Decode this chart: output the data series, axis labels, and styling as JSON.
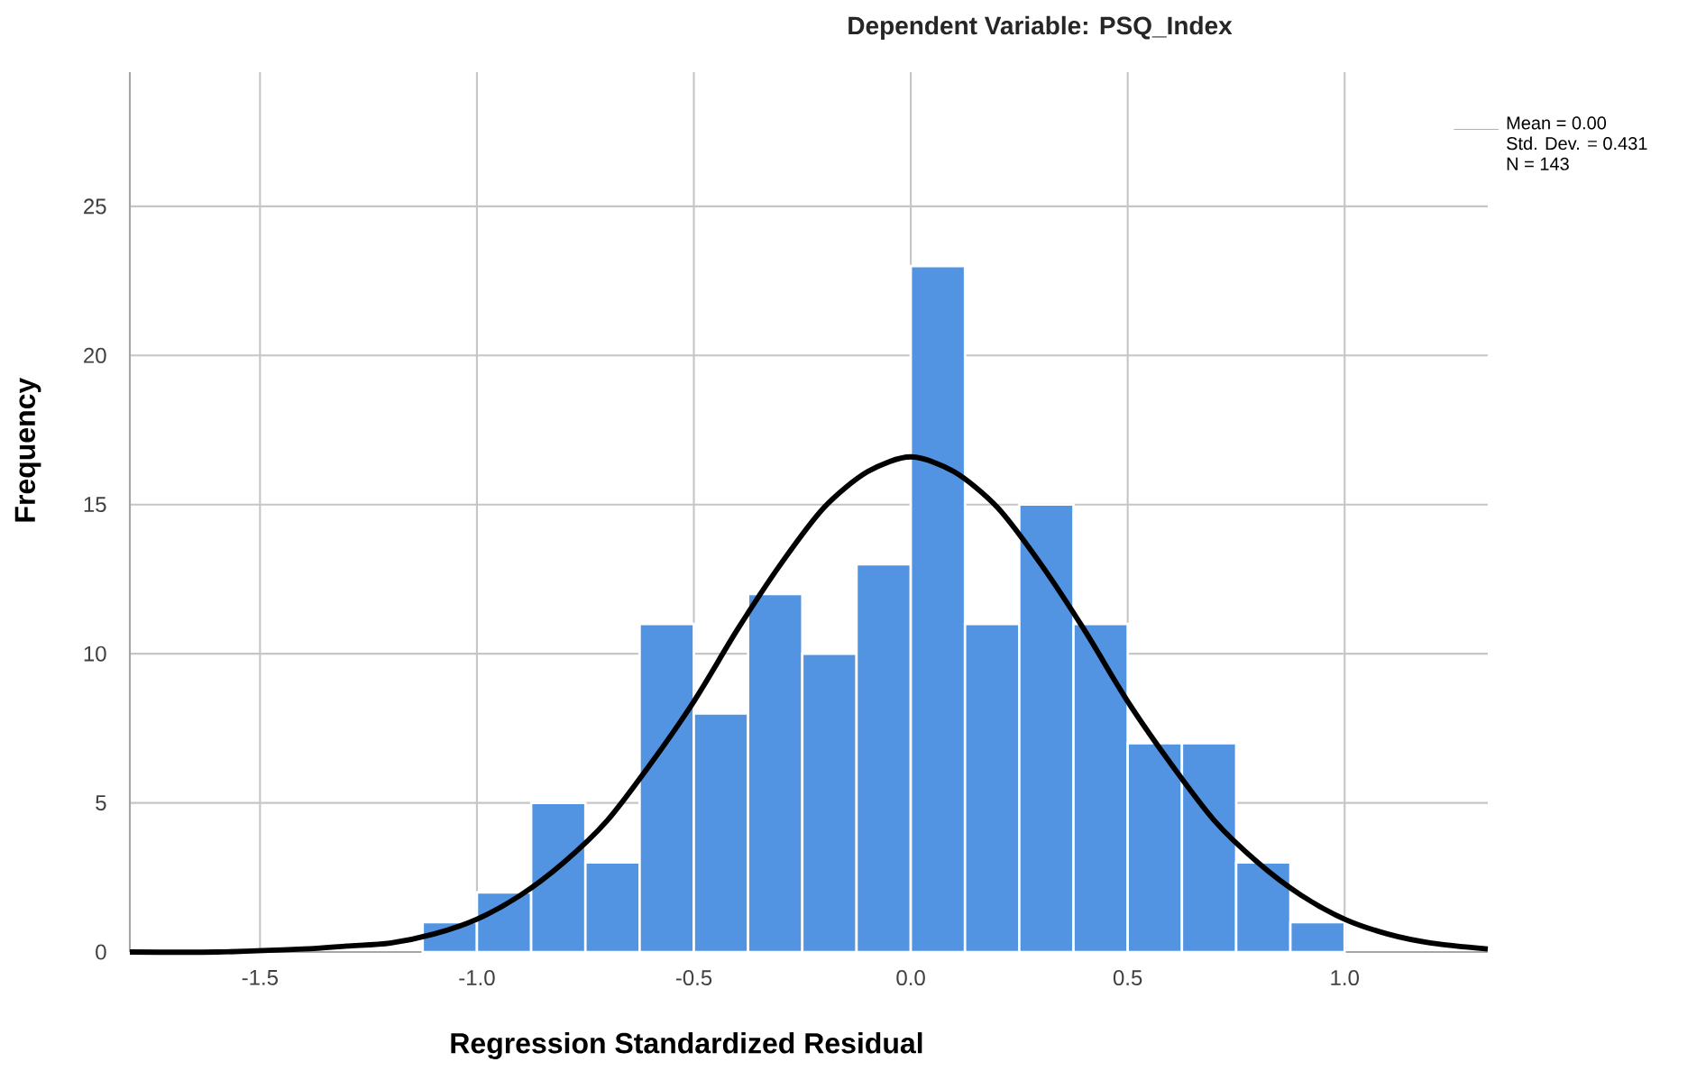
{
  "chart_data": {
    "type": "histogram",
    "title": "Dependent Variable: PSQ_Index",
    "xlabel": "Regression Standardized Residual",
    "ylabel": "Frequency",
    "xlim": [
      -1.8,
      1.33
    ],
    "ylim": [
      0,
      29.5
    ],
    "xticks": [
      {
        "value": -1.5,
        "label": "-1.5"
      },
      {
        "value": -1.0,
        "label": "-1.0"
      },
      {
        "value": -0.5,
        "label": "-0.5"
      },
      {
        "value": 0.0,
        "label": "0.0"
      },
      {
        "value": 0.5,
        "label": "0.5"
      },
      {
        "value": 1.0,
        "label": "1.0"
      }
    ],
    "yticks": [
      0,
      5,
      10,
      15,
      20,
      25
    ],
    "grid": true,
    "series": [
      {
        "color": "#5294e2",
        "bins": [
          -1.125,
          -1.0,
          -0.875,
          -0.75,
          -0.625,
          -0.5,
          -0.375,
          -0.25,
          -0.125,
          0.0,
          0.125,
          0.25,
          0.375,
          0.5,
          0.625,
          0.75,
          0.875,
          1.0
        ],
        "values": [
          1,
          2,
          5,
          3,
          11,
          8,
          12,
          10,
          13,
          23,
          11,
          15,
          11,
          7,
          7,
          3,
          1
        ]
      },
      {
        "type": "line",
        "color": "#000000",
        "x": [
          -1.8,
          -1.6,
          -1.4,
          -1.3,
          -1.2,
          -1.1,
          -1.0,
          -0.9,
          -0.8,
          -0.7,
          -0.6,
          -0.5,
          -0.4,
          -0.3,
          -0.2,
          -0.1,
          0.0,
          0.1,
          0.2,
          0.3,
          0.4,
          0.5,
          0.6,
          0.7,
          0.8,
          0.9,
          1.0,
          1.1,
          1.2,
          1.33
        ],
        "values": [
          0.0,
          0.0,
          0.1,
          0.2,
          0.3,
          0.6,
          1.1,
          1.9,
          3.0,
          4.4,
          6.3,
          8.4,
          10.8,
          13.0,
          14.9,
          16.1,
          16.6,
          16.1,
          14.9,
          13.0,
          10.8,
          8.4,
          6.3,
          4.4,
          3.0,
          1.9,
          1.1,
          0.6,
          0.3,
          0.1
        ]
      }
    ],
    "annotations": [
      "Mean = 0.00",
      "Std. Dev. = 0.431",
      "N = 143"
    ]
  }
}
